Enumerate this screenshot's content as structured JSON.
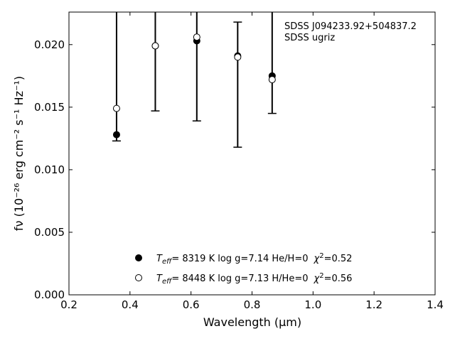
{
  "chart_data": {
    "type": "scatter",
    "title": "",
    "annotation": [
      "SDSS J094233.92+504837.2",
      "SDSS ugriz"
    ],
    "xlabel": "Wavelength (μm)",
    "ylabel": "fν (10⁻²⁶ erg cm⁻² s⁻¹ Hz⁻¹)",
    "xlim": [
      0.2,
      1.4
    ],
    "ylim": [
      0.0,
      0.0226
    ],
    "xticks": [
      "0.2",
      "0.4",
      "0.6",
      "0.8",
      "1.0",
      "1.2",
      "1.4"
    ],
    "yticks": [
      "0.000",
      "0.005",
      "0.010",
      "0.015",
      "0.020"
    ],
    "grid": false,
    "legend_position": "bottom-center",
    "series": [
      {
        "name": "Teff= 8319 K log g=7.14 He/H=0 χ²=0.52",
        "marker": "filled-circle",
        "x": [
          0.356,
          0.483,
          0.619,
          0.753,
          0.866
        ],
        "y": [
          0.0128,
          0.0199,
          0.0203,
          0.0191,
          0.0175
        ],
        "yerr_low": [
          0.0123,
          0.0147,
          0.0139,
          0.0118,
          0.0145
        ],
        "yerr_high": [
          0.0226,
          0.0226,
          0.0226,
          0.0218,
          0.0226
        ]
      },
      {
        "name": "Teff= 8448 K log g=7.13 H/He=0 χ²=0.56",
        "marker": "open-circle",
        "x": [
          0.356,
          0.483,
          0.619,
          0.753,
          0.866
        ],
        "y": [
          0.0149,
          0.0199,
          0.0206,
          0.019,
          0.0172
        ]
      }
    ],
    "legend": [
      {
        "teff_label": "T",
        "teff_sub": "eff",
        "rest": "=  8319 K  log g=7.14  He/H=0",
        "chi": "χ",
        "chi_sup": "2",
        "chi_val": "=0.52"
      },
      {
        "teff_label": "T",
        "teff_sub": "eff",
        "rest": "=  8448 K  log g=7.13  H/He=0",
        "chi": "χ",
        "chi_sup": "2",
        "chi_val": "=0.56"
      }
    ]
  }
}
